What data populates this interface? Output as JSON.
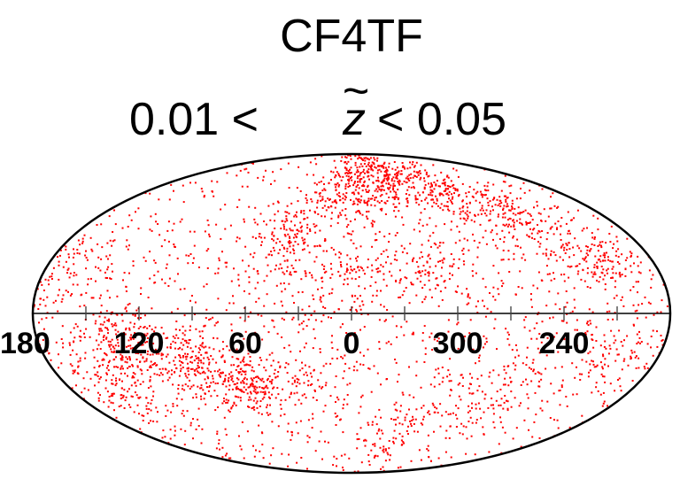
{
  "chart_data": {
    "type": "scatter",
    "projection": "mollweide",
    "title": "CF4TF",
    "subtitle": {
      "lower": "0.01 <",
      "variable": "z",
      "variable_accent": "~",
      "upper": "< 0.05"
    },
    "xlabel": "",
    "ylabel": "",
    "longitude_ticks": [
      "180",
      "120",
      "60",
      "0",
      "300",
      "240"
    ],
    "longitude_tick_values": [
      180,
      120,
      60,
      0,
      300,
      240
    ],
    "longitude_range": [
      -180,
      180
    ],
    "latitude_range": [
      -90,
      90
    ],
    "grid": false,
    "marker_color": "#ff0000",
    "dense_regions": [
      {
        "lon": 40,
        "lat": 35,
        "count": 140,
        "spread": 9
      },
      {
        "lon": 0,
        "lat": 60,
        "count": 240,
        "spread": 12
      },
      {
        "lon": -40,
        "lat": 70,
        "count": 170,
        "spread": 9
      },
      {
        "lon": -80,
        "lat": 60,
        "count": 170,
        "spread": 10
      },
      {
        "lon": -120,
        "lat": 45,
        "count": 150,
        "spread": 10
      },
      {
        "lon": -150,
        "lat": 25,
        "count": 110,
        "spread": 8
      },
      {
        "lon": -45,
        "lat": 20,
        "count": 70,
        "spread": 8
      },
      {
        "lon": -5,
        "lat": 15,
        "count": 60,
        "spread": 9
      },
      {
        "lon": 155,
        "lat": 15,
        "count": 90,
        "spread": 12
      },
      {
        "lon": 130,
        "lat": -15,
        "count": 180,
        "spread": 9
      },
      {
        "lon": 95,
        "lat": -25,
        "count": 200,
        "spread": 9
      },
      {
        "lon": 65,
        "lat": -32,
        "count": 150,
        "spread": 7
      },
      {
        "lon": 150,
        "lat": -35,
        "count": 100,
        "spread": 10
      },
      {
        "lon": 30,
        "lat": -30,
        "count": 60,
        "spread": 10
      },
      {
        "lon": -90,
        "lat": -40,
        "count": 80,
        "spread": 12
      },
      {
        "lon": -150,
        "lat": -15,
        "count": 70,
        "spread": 9
      },
      {
        "lon": -40,
        "lat": -60,
        "count": 60,
        "spread": 10
      }
    ],
    "uniform_background_points": 1600
  }
}
